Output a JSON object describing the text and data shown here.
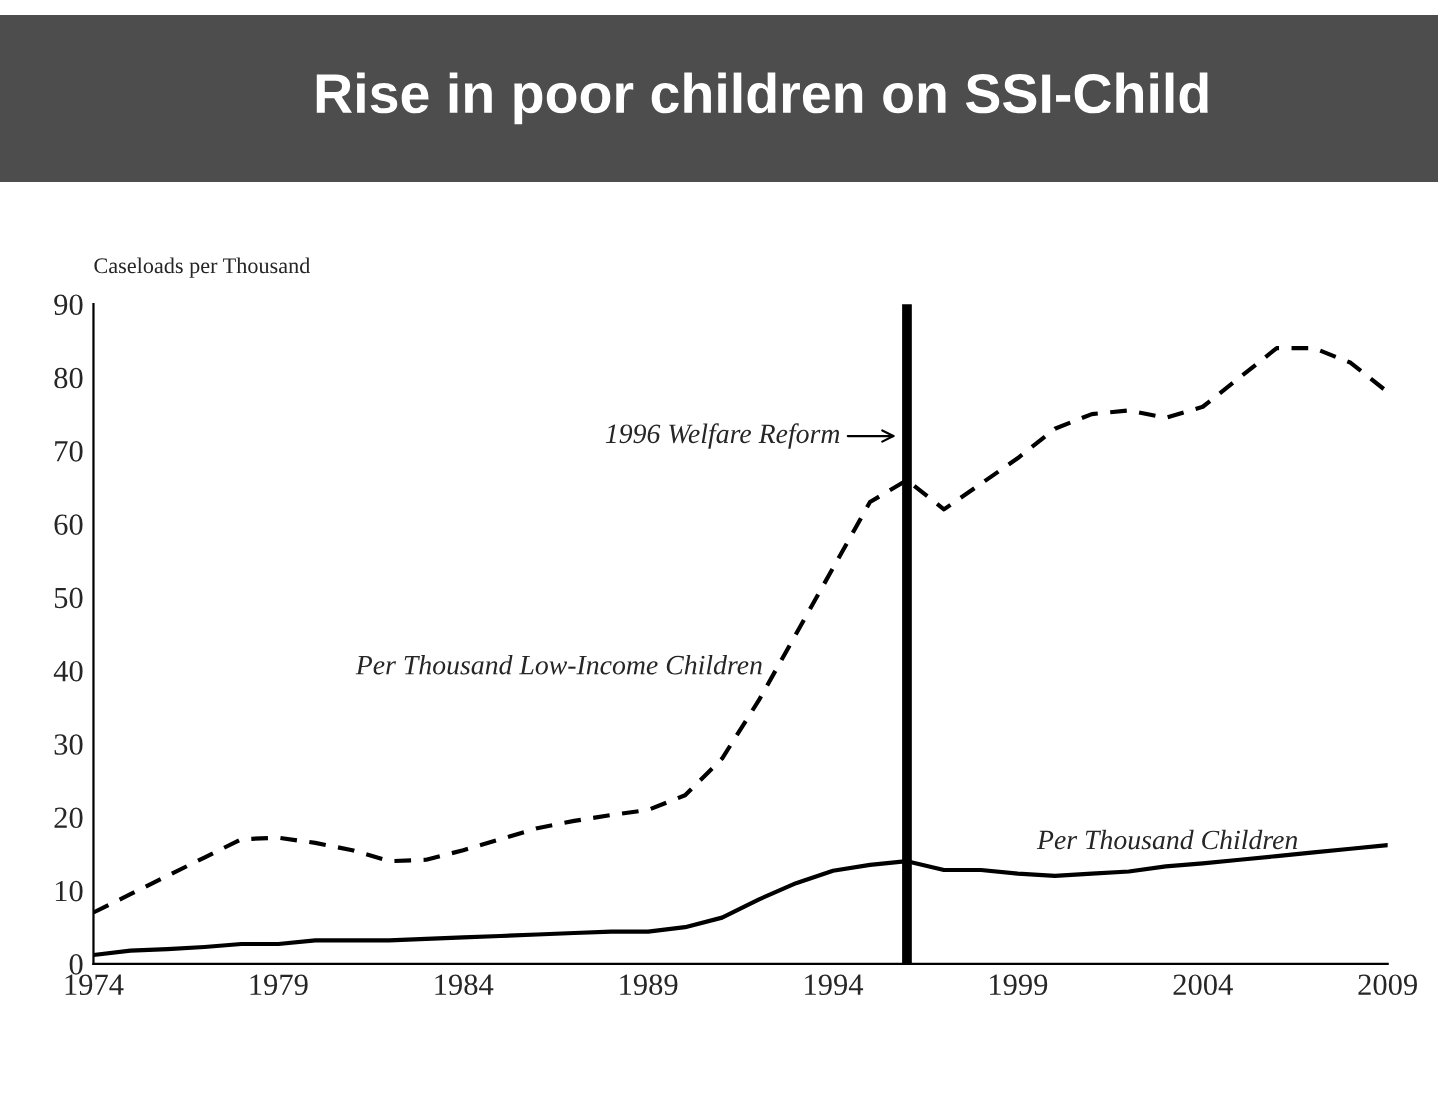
{
  "chart_data": {
    "type": "line",
    "title": "Rise in poor children on SSI-Child",
    "ylabel": "Caseloads per Thousand",
    "x": [
      1974,
      1975,
      1976,
      1977,
      1978,
      1979,
      1980,
      1981,
      1982,
      1983,
      1984,
      1985,
      1986,
      1987,
      1988,
      1989,
      1990,
      1991,
      1992,
      1993,
      1994,
      1995,
      1996,
      1997,
      1998,
      1999,
      2000,
      2001,
      2002,
      2003,
      2004,
      2005,
      2006,
      2007,
      2008,
      2009
    ],
    "series": [
      {
        "name": "Per Thousand Low-Income Children",
        "color": "#000000",
        "line_style": "dashed",
        "values": [
          7,
          9.5,
          12,
          14.5,
          17,
          17.2,
          16.5,
          15.5,
          14,
          14.2,
          15.5,
          17,
          18.5,
          19.5,
          20.3,
          21,
          23,
          28,
          36,
          45,
          54,
          63,
          66,
          62,
          65.5,
          69,
          73,
          75,
          75.5,
          74.5,
          76,
          80,
          84,
          84,
          82,
          78
        ]
      },
      {
        "name": "Per Thousand Children",
        "color": "#000000",
        "line_style": "solid",
        "values": [
          1.2,
          1.8,
          2,
          2.3,
          2.7,
          2.7,
          3.2,
          3.2,
          3.2,
          3.4,
          3.6,
          3.8,
          4,
          4.2,
          4.4,
          4.4,
          5,
          6.3,
          8.8,
          11,
          12.7,
          13.5,
          14,
          12.8,
          12.8,
          12.3,
          12,
          12.3,
          12.6,
          13.3,
          13.7,
          14.2,
          14.7,
          15.2,
          15.7,
          16.2
        ]
      }
    ],
    "ref_lines": [
      {
        "axis": "x",
        "value": 1996,
        "label": "1996 Welfare Reform",
        "color": "#000000"
      }
    ],
    "xlim": [
      1974,
      2009
    ],
    "xticks": [
      1974,
      1979,
      1984,
      1989,
      1994,
      1999,
      2004,
      2009
    ],
    "ylim": [
      0,
      90
    ],
    "yticks": [
      0,
      10,
      20,
      30,
      40,
      50,
      60,
      70,
      80,
      90
    ],
    "grid": false,
    "legend": false,
    "marker": "none"
  }
}
